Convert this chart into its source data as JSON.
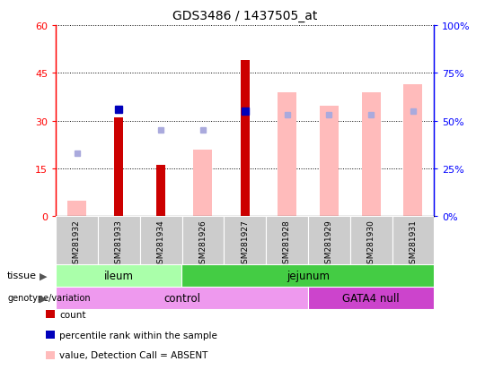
{
  "title": "GDS3486 / 1437505_at",
  "samples": [
    "GSM281932",
    "GSM281933",
    "GSM281934",
    "GSM281926",
    "GSM281927",
    "GSM281928",
    "GSM281929",
    "GSM281930",
    "GSM281931"
  ],
  "count": [
    null,
    31,
    16,
    null,
    49,
    null,
    null,
    null,
    null
  ],
  "rank_pct": [
    null,
    56,
    null,
    null,
    55,
    null,
    null,
    null,
    null
  ],
  "value_absent_pct": [
    8,
    null,
    null,
    35,
    null,
    65,
    58,
    65,
    69
  ],
  "rank_absent_pct": [
    33,
    null,
    45,
    45,
    null,
    53,
    53,
    53,
    55
  ],
  "left_ylim": [
    0,
    60
  ],
  "right_ylim": [
    0,
    100
  ],
  "left_yticks": [
    0,
    15,
    30,
    45,
    60
  ],
  "right_yticks": [
    0,
    25,
    50,
    75,
    100
  ],
  "left_yticklabels": [
    "0",
    "15",
    "30",
    "45",
    "60"
  ],
  "right_yticklabels": [
    "0%",
    "25%",
    "50%",
    "75%",
    "100%"
  ],
  "tissue_groups": [
    {
      "label": "ileum",
      "start": 0,
      "end": 3,
      "color": "#aaffaa"
    },
    {
      "label": "jejunum",
      "start": 3,
      "end": 9,
      "color": "#44cc44"
    }
  ],
  "genotype_groups": [
    {
      "label": "control",
      "start": 0,
      "end": 6,
      "color": "#ee99ee"
    },
    {
      "label": "GATA4 null",
      "start": 6,
      "end": 9,
      "color": "#cc44cc"
    }
  ],
  "color_count": "#cc0000",
  "color_rank": "#0000bb",
  "color_value_absent": "#ffbbbb",
  "color_rank_absent": "#aaaadd",
  "xticklabel_bg": "#cccccc"
}
